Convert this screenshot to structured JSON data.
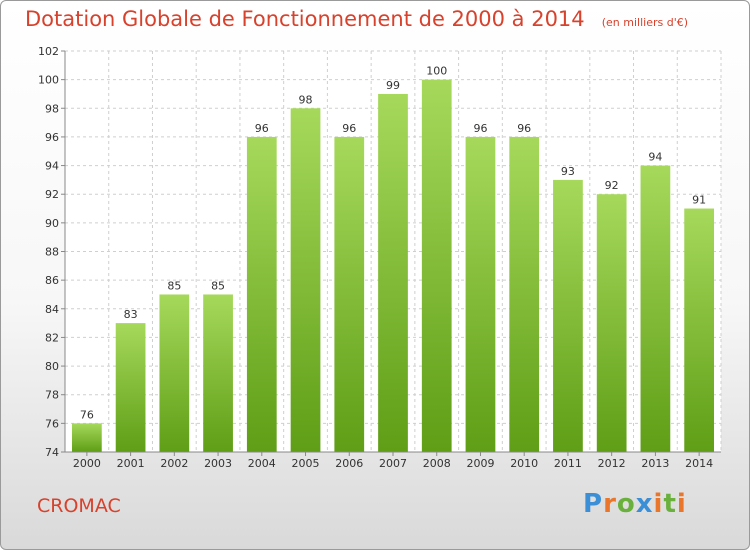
{
  "title": "Dotation Globale de Fonctionnement de 2000 à 2014",
  "unit_note": "(en milliers d'€)",
  "commune": "CROMAC",
  "logo": {
    "letters": [
      "P",
      "r",
      "o",
      "x",
      "i",
      "t",
      "i"
    ],
    "colors": [
      "#3a8fd6",
      "#e9762b",
      "#69b03c",
      "#3a8fd6",
      "#e9762b",
      "#69b03c",
      "#e9762b"
    ]
  },
  "colors": {
    "bar_top": "#a6d95b",
    "bar_bottom": "#5f9e16",
    "grid": "#cfcfcf",
    "axis": "#888888"
  },
  "chart_data": {
    "type": "bar",
    "title": "Dotation Globale de Fonctionnement de 2000 à 2014",
    "ylabel": "(en milliers d'€)",
    "xlabel": "",
    "categories": [
      "2000",
      "2001",
      "2002",
      "2003",
      "2004",
      "2005",
      "2006",
      "2007",
      "2008",
      "2009",
      "2010",
      "2011",
      "2012",
      "2013",
      "2014"
    ],
    "values": [
      76,
      83,
      85,
      85,
      96,
      98,
      96,
      99,
      100,
      96,
      96,
      93,
      92,
      94,
      91
    ],
    "ylim": [
      74,
      102
    ],
    "yticks": [
      74,
      76,
      78,
      80,
      82,
      84,
      86,
      88,
      90,
      92,
      94,
      96,
      98,
      100,
      102
    ],
    "grid": true
  }
}
